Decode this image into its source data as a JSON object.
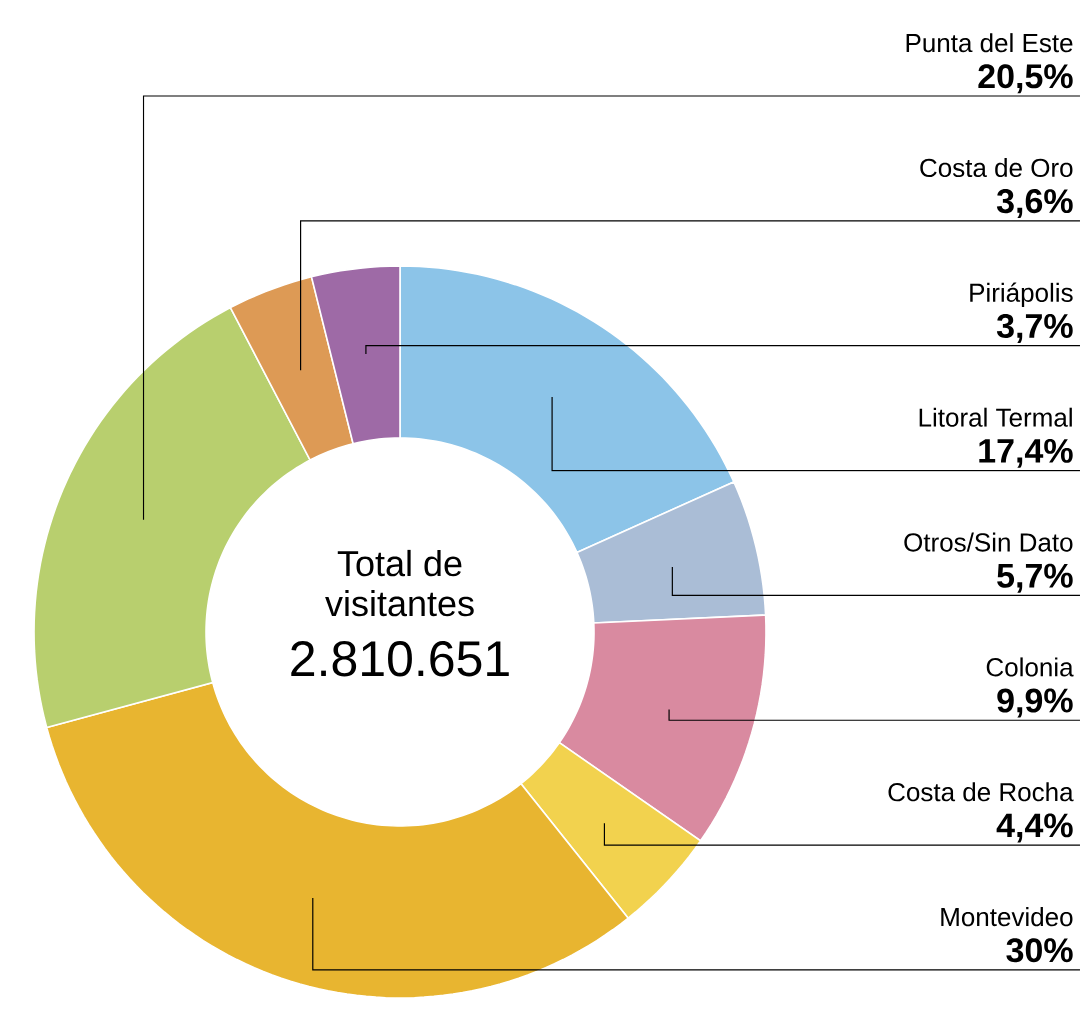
{
  "chart_data": {
    "type": "donut",
    "categories": [
      "Litoral Termal",
      "Otros/Sin Dato",
      "Colonia",
      "Costa de Rocha",
      "Montevideo",
      "Punta del Este",
      "Costa de Oro",
      "Piriápolis"
    ],
    "values": [
      17.4,
      5.7,
      9.9,
      4.4,
      30,
      20.5,
      3.6,
      3.7
    ],
    "value_labels": [
      "17,4%",
      "5,7%",
      "9,9%",
      "4,4%",
      "30%",
      "20,5%",
      "3,6%",
      "3,7%"
    ],
    "colors": [
      "#8cc4e8",
      "#aabdd6",
      "#d98aa0",
      "#f2d24e",
      "#e8b530",
      "#b8cf6e",
      "#dd9a55",
      "#9e6aa6"
    ],
    "annotations": [
      "Total de",
      "visitantes",
      "2.810.651"
    ]
  }
}
